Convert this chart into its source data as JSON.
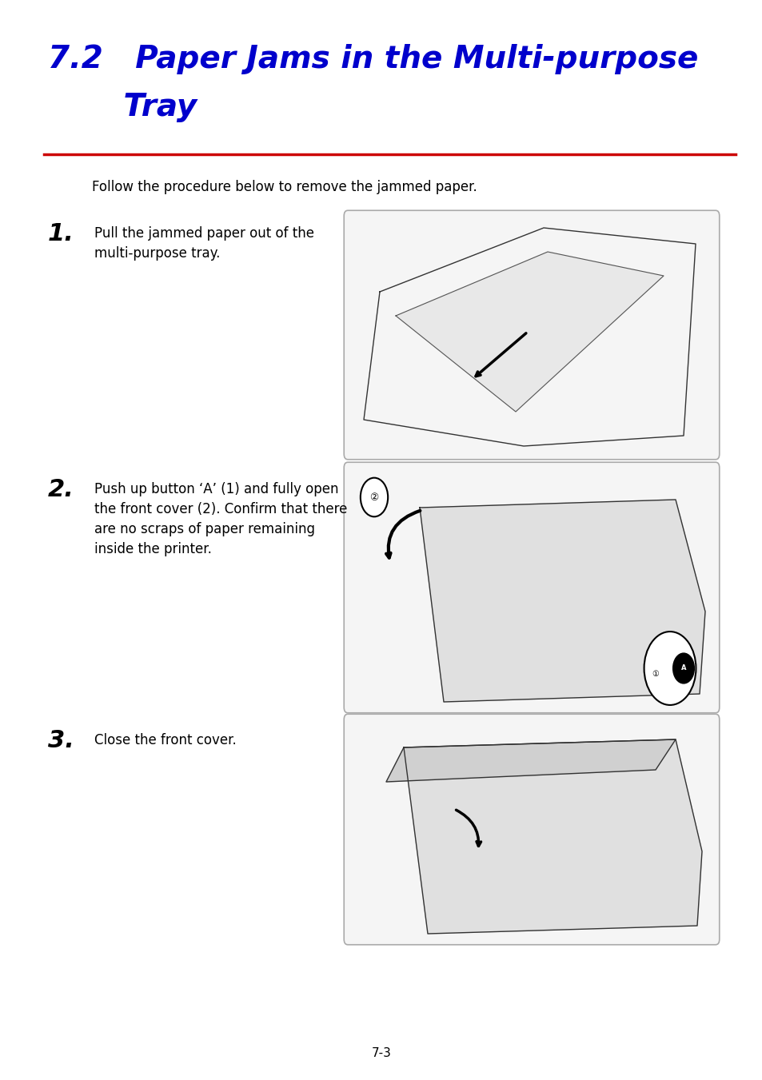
{
  "title_line1": "7.2   Paper Jams in the Multi-purpose",
  "title_line2": "       Tray",
  "title_color": "#0000cc",
  "title_fontsize": 28,
  "separator_color": "#cc0000",
  "bg_color": "#ffffff",
  "intro_text": "Follow the procedure below to remove the jammed paper.",
  "step1_num": "1.",
  "step1_text": "Pull the jammed paper out of the\nmulti-purpose tray.",
  "step2_num": "2.",
  "step2_text": "Push up button ‘A’ (1) and fully open\nthe front cover (2). Confirm that there\nare no scraps of paper remaining\ninside the printer.",
  "step3_num": "3.",
  "step3_text": "Close the front cover.",
  "page_number": "7-3"
}
